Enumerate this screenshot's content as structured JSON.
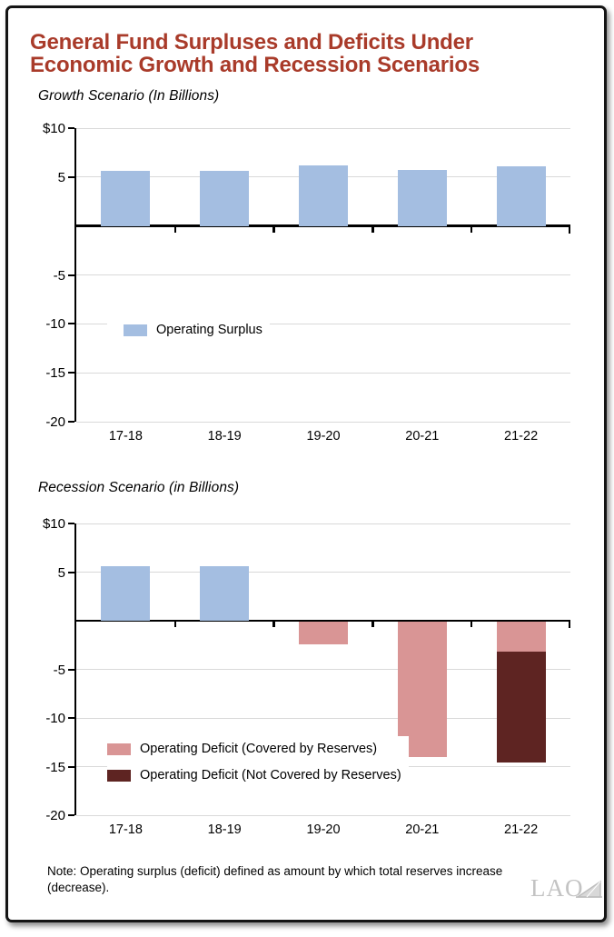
{
  "title": {
    "line1": "General Fund Surpluses and Deficits Under",
    "line2": "Economic Growth and Recession Scenarios",
    "color": "#A93B2A"
  },
  "colors": {
    "surplus_blue": "#A4BEE1",
    "deficit_pink": "#D99595",
    "deficit_maroon": "#5E2422",
    "grid_gray": "#D9D9D9",
    "axis_black": "#000000",
    "title_red": "#A93B2A",
    "logo_gray": "#C3C3C3"
  },
  "chart_data": [
    {
      "type": "bar",
      "title": "Growth Scenario (In Billions)",
      "categories": [
        "17-18",
        "18-19",
        "19-20",
        "20-21",
        "21-22"
      ],
      "series": [
        {
          "name": "Operating Surplus",
          "color": "surplus_blue",
          "values": [
            5.6,
            5.6,
            6.2,
            5.7,
            6.1
          ]
        }
      ],
      "stacked": false,
      "ylim": [
        -20,
        10
      ],
      "ytick_values": [
        10,
        5,
        -5,
        -10,
        -15,
        -20
      ],
      "ytick_labels": [
        "$10",
        "5",
        "-5",
        "-10",
        "-15",
        "-20"
      ],
      "grid": true,
      "legend_position": "inside-left",
      "legend": [
        {
          "label": "Operating Surplus",
          "color": "surplus_blue"
        }
      ]
    },
    {
      "type": "bar",
      "title": "Recession Scenario (in Billions)",
      "categories": [
        "17-18",
        "18-19",
        "19-20",
        "20-21",
        "21-22"
      ],
      "series": [
        {
          "name": "Operating Surplus",
          "color": "surplus_blue",
          "values": [
            5.6,
            5.6,
            null,
            null,
            null
          ]
        },
        {
          "name": "Operating Deficit (Covered by Reserves)",
          "color": "deficit_pink",
          "values": [
            null,
            null,
            -2.4,
            -14.0,
            -3.2
          ]
        },
        {
          "name": "Operating Deficit (Not Covered by Reserves)",
          "color": "deficit_maroon",
          "values": [
            null,
            null,
            null,
            null,
            -11.4
          ]
        }
      ],
      "stacked": true,
      "ylim": [
        -20,
        10
      ],
      "ytick_values": [
        10,
        5,
        -5,
        -10,
        -15,
        -20
      ],
      "ytick_labels": [
        "$10",
        "5",
        "-5",
        "-10",
        "-15",
        "-20"
      ],
      "grid": true,
      "legend_position": "inside-left",
      "legend": [
        {
          "label": "Operating Deficit (Covered by Reserves)",
          "color": "deficit_pink"
        },
        {
          "label": "Operating Deficit (Not Covered by Reserves)",
          "color": "deficit_maroon"
        }
      ]
    }
  ],
  "note": {
    "text": "Note: Operating surplus (deficit) defined as amount by which total reserves increase (decrease)."
  },
  "logo": {
    "text": "LAO"
  }
}
